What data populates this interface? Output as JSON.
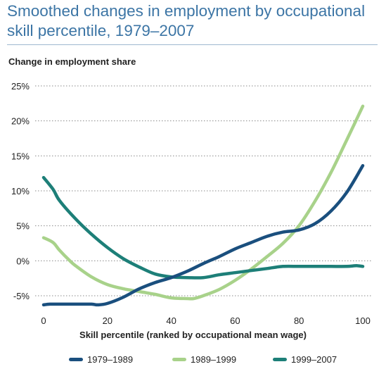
{
  "chart_data": {
    "type": "line",
    "title": "Smoothed changes in employment by occupational skill percentile, 1979–2007",
    "ylabel": "Change in employment share",
    "xlabel": "Skill percentile (ranked by occupational mean wage)",
    "xlim": [
      0,
      100
    ],
    "ylim": [
      -5,
      25
    ],
    "x_ticks": [
      0,
      20,
      40,
      60,
      80,
      100
    ],
    "y_ticks": [
      25,
      20,
      15,
      10,
      5,
      0,
      -5
    ],
    "y_tick_labels": [
      "25%",
      "20%",
      "15%",
      "10%",
      "5%",
      "0%",
      "-5%"
    ],
    "grid": "horizontal dotted",
    "legend_position": "bottom",
    "series": [
      {
        "name": "1979–1989",
        "color": "#1a4f7e",
        "x": [
          0,
          2,
          5,
          10,
          15,
          17,
          20,
          25,
          30,
          35,
          40,
          45,
          50,
          55,
          60,
          65,
          70,
          75,
          80,
          85,
          90,
          95,
          100
        ],
        "y": [
          -6.3,
          -6.2,
          -6.2,
          -6.2,
          -6.2,
          -6.3,
          -6.1,
          -5.2,
          -4.0,
          -3.1,
          -2.4,
          -1.5,
          -0.4,
          0.6,
          1.7,
          2.6,
          3.5,
          4.1,
          4.4,
          5.3,
          7.1,
          9.8,
          13.6
        ]
      },
      {
        "name": "1989–1999",
        "color": "#a8d28a",
        "x": [
          0,
          3,
          5,
          8,
          10,
          15,
          20,
          25,
          30,
          35,
          40,
          45,
          47,
          50,
          55,
          60,
          65,
          70,
          75,
          80,
          85,
          90,
          95,
          100
        ],
        "y": [
          3.3,
          2.6,
          1.5,
          0.1,
          -0.7,
          -2.3,
          -3.4,
          -4.0,
          -4.4,
          -4.8,
          -5.3,
          -5.4,
          -5.4,
          -5.0,
          -4.1,
          -2.8,
          -1.2,
          0.6,
          2.5,
          5.0,
          8.5,
          12.6,
          17.3,
          22.1
        ]
      },
      {
        "name": "1999–2007",
        "color": "#1d7f78",
        "x": [
          0,
          3,
          5,
          10,
          15,
          20,
          25,
          30,
          35,
          40,
          45,
          50,
          55,
          60,
          65,
          70,
          75,
          80,
          85,
          90,
          95,
          98,
          100
        ],
        "y": [
          11.9,
          10.2,
          8.6,
          6.0,
          3.8,
          1.9,
          0.3,
          -0.9,
          -1.9,
          -2.3,
          -2.4,
          -2.4,
          -2.0,
          -1.7,
          -1.4,
          -1.1,
          -0.8,
          -0.8,
          -0.8,
          -0.8,
          -0.8,
          -0.7,
          -0.8
        ]
      }
    ]
  }
}
